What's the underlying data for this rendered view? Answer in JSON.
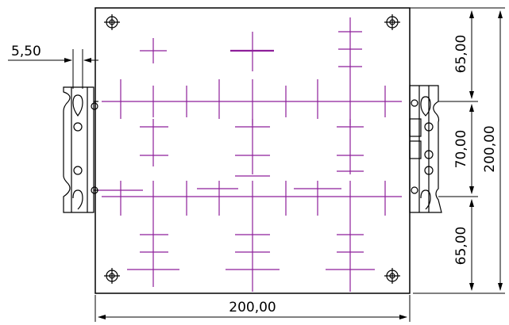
{
  "colors": {
    "outline": "#000000",
    "crosshair": "#8e1f9a",
    "background": "#ffffff"
  },
  "dimensions": {
    "rail_offset": "5,50",
    "top_margin": "65,00",
    "mid_span": "70,00",
    "bottom_margin": "65,00",
    "total_height": "200,00",
    "total_width": "200,00"
  }
}
